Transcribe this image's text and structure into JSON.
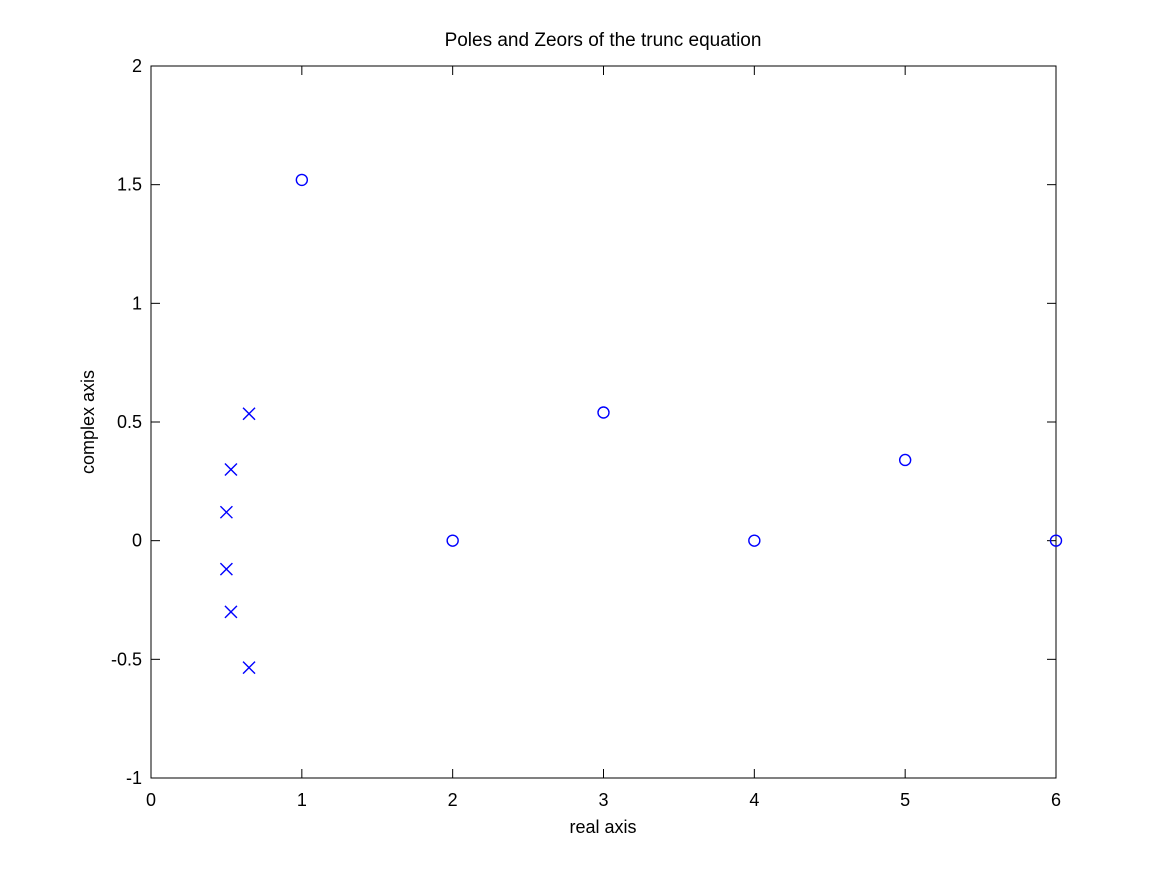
{
  "chart_data": {
    "type": "scatter",
    "title": "Poles and Zeors of the trunc equation",
    "xlabel": "real axis",
    "ylabel": "complex axis",
    "xlim": [
      0,
      6
    ],
    "ylim": [
      -1,
      2
    ],
    "xticks": [
      0,
      1,
      2,
      3,
      4,
      5,
      6
    ],
    "yticks": [
      -1,
      -0.5,
      0,
      0.5,
      1,
      1.5,
      2
    ],
    "ytick_labels": [
      "-1",
      "-0.5",
      "0",
      "0.5",
      "1",
      "1.5",
      "2"
    ],
    "grid": false,
    "color": "#0000ff",
    "series": [
      {
        "marker": "x",
        "points": [
          {
            "x": 0.65,
            "y": 0.535
          },
          {
            "x": 0.53,
            "y": 0.3
          },
          {
            "x": 0.5,
            "y": 0.12
          },
          {
            "x": 0.5,
            "y": -0.12
          },
          {
            "x": 0.53,
            "y": -0.3
          },
          {
            "x": 0.65,
            "y": -0.535
          }
        ]
      },
      {
        "marker": "o",
        "points": [
          {
            "x": 1,
            "y": 1.52
          },
          {
            "x": 2,
            "y": 0
          },
          {
            "x": 3,
            "y": 0.54
          },
          {
            "x": 4,
            "y": 0
          },
          {
            "x": 5,
            "y": 0.34
          },
          {
            "x": 6,
            "y": 0
          }
        ]
      }
    ]
  }
}
